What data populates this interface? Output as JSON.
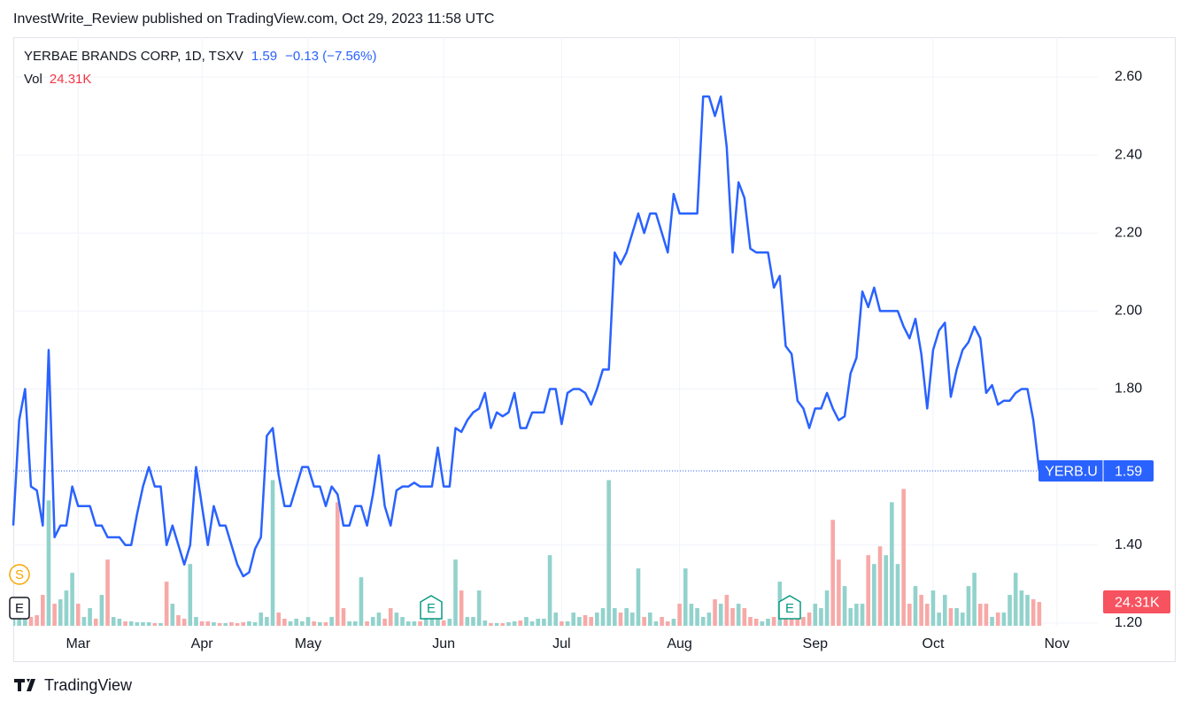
{
  "header": "InvestWrite_Review published on TradingView.com, Oct 29, 2023 11:58 UTC",
  "footer": "TradingView",
  "chart_data": {
    "type": "line",
    "title": "YERBAE BRANDS CORP, 1D, TSXV",
    "change": "−0.13 (−7.56%)",
    "ticker": "YERB.U",
    "categories": [
      null,
      null,
      null,
      null,
      null,
      null,
      null,
      null,
      null,
      null,
      null,
      "Mar",
      null,
      null,
      null,
      null,
      null,
      null,
      null,
      null,
      null,
      null,
      null,
      null,
      null,
      null,
      null,
      null,
      null,
      null,
      null,
      null,
      "Apr",
      null,
      null,
      null,
      null,
      null,
      null,
      null,
      null,
      null,
      null,
      null,
      null,
      null,
      null,
      null,
      null,
      null,
      "May",
      null,
      null,
      null,
      null,
      null,
      null,
      null,
      null,
      null,
      null,
      null,
      null,
      null,
      null,
      null,
      null,
      null,
      null,
      null,
      null,
      null,
      null,
      "Jun",
      null,
      null,
      null,
      null,
      null,
      null,
      null,
      null,
      null,
      null,
      null,
      null,
      null,
      null,
      null,
      null,
      null,
      null,
      null,
      "Jul",
      null,
      null,
      null,
      null,
      null,
      null,
      null,
      null,
      null,
      null,
      null,
      null,
      null,
      null,
      null,
      null,
      null,
      null,
      null,
      "Aug",
      null,
      null,
      null,
      null,
      null,
      null,
      null,
      null,
      null,
      null,
      null,
      null,
      null,
      null,
      null,
      null,
      null,
      null,
      null,
      null,
      null,
      null,
      "Sep",
      null,
      null,
      null,
      null,
      null,
      null,
      null,
      null,
      null,
      null,
      null,
      null,
      null,
      null,
      null,
      null,
      null,
      null,
      null,
      "Oct",
      null,
      null,
      null,
      null,
      null,
      null,
      null,
      null,
      null,
      null,
      null,
      null,
      null,
      null,
      null,
      null,
      null,
      null,
      null,
      null,
      "Nov"
    ],
    "series": [
      {
        "color": "#2962ff",
        "values": [
          1.45,
          1.72,
          1.8,
          1.55,
          1.54,
          1.45,
          1.9,
          1.42,
          1.45,
          1.45,
          1.55,
          1.5,
          1.5,
          1.5,
          1.45,
          1.45,
          1.42,
          1.42,
          1.42,
          1.4,
          1.4,
          1.48,
          1.55,
          1.6,
          1.55,
          1.55,
          1.4,
          1.45,
          1.4,
          1.35,
          1.4,
          1.6,
          1.5,
          1.4,
          1.5,
          1.45,
          1.45,
          1.4,
          1.35,
          1.32,
          1.33,
          1.39,
          1.42,
          1.68,
          1.7,
          1.58,
          1.5,
          1.5,
          1.55,
          1.6,
          1.6,
          1.55,
          1.55,
          1.5,
          1.55,
          1.53,
          1.45,
          1.45,
          1.5,
          1.5,
          1.45,
          1.53,
          1.63,
          1.5,
          1.45,
          1.54,
          1.55,
          1.55,
          1.56,
          1.55,
          1.55,
          1.55,
          1.65,
          1.55,
          1.55,
          1.7,
          1.69,
          1.72,
          1.74,
          1.75,
          1.79,
          1.7,
          1.74,
          1.73,
          1.74,
          1.79,
          1.7,
          1.7,
          1.74,
          1.74,
          1.74,
          1.8,
          1.8,
          1.71,
          1.79,
          1.8,
          1.8,
          1.79,
          1.76,
          1.8,
          1.85,
          1.85,
          2.15,
          2.12,
          2.15,
          2.2,
          2.25,
          2.2,
          2.25,
          2.25,
          2.2,
          2.15,
          2.3,
          2.25,
          2.25,
          2.25,
          2.25,
          2.55,
          2.55,
          2.5,
          2.55,
          2.42,
          2.15,
          2.33,
          2.29,
          2.16,
          2.15,
          2.15,
          2.15,
          2.06,
          2.09,
          1.91,
          1.89,
          1.77,
          1.75,
          1.7,
          1.75,
          1.75,
          1.79,
          1.75,
          1.72,
          1.73,
          1.84,
          1.88,
          2.05,
          2.01,
          2.06,
          2.0,
          2.0,
          2.0,
          2.0,
          1.96,
          1.93,
          1.98,
          1.89,
          1.75,
          1.9,
          1.95,
          1.97,
          1.78,
          1.85,
          1.9,
          1.92,
          1.96,
          1.93,
          1.79,
          1.81,
          1.76,
          1.77,
          1.77,
          1.79,
          1.8,
          1.8,
          1.72,
          1.59,
          null,
          null,
          null
        ]
      }
    ],
    "volume": {
      "name": "Vol",
      "up_color": "#92d2cc",
      "down_color": "#f7a9a7",
      "label_color": "#f7525f",
      "last_label": "24.31K",
      "ylim": [
        0,
        600000
      ],
      "values": [
        7200,
        9000,
        13500,
        9000,
        10800,
        31500,
        127800,
        22500,
        27000,
        36000,
        54000,
        22500,
        9000,
        18000,
        7200,
        31500,
        67500,
        9000,
        7200,
        4500,
        4500,
        3600,
        3600,
        3600,
        2700,
        2700,
        45000,
        22500,
        10800,
        7200,
        63000,
        9000,
        4500,
        4500,
        3600,
        2700,
        2700,
        3600,
        2700,
        3600,
        4500,
        3600,
        13500,
        9000,
        148500,
        13500,
        7200,
        4500,
        7200,
        4500,
        9000,
        4500,
        3600,
        3600,
        9000,
        126000,
        18000,
        4500,
        4500,
        49500,
        4500,
        9000,
        13500,
        7200,
        18000,
        13500,
        9000,
        4500,
        4500,
        4500,
        9000,
        13500,
        9000,
        5400,
        7200,
        67500,
        36000,
        9000,
        9000,
        36000,
        5400,
        2700,
        2700,
        2700,
        3600,
        4500,
        5400,
        9000,
        4500,
        7200,
        7200,
        72000,
        13500,
        4500,
        4500,
        13500,
        9000,
        10800,
        9000,
        13500,
        18000,
        148500,
        18000,
        13500,
        18000,
        13500,
        58500,
        9000,
        13500,
        4500,
        9000,
        4500,
        7200,
        22500,
        58500,
        22500,
        18000,
        9000,
        13500,
        27000,
        22500,
        31500,
        18000,
        22500,
        18000,
        9000,
        7200,
        4500,
        7200,
        9000,
        45000,
        18000,
        22500,
        18000,
        9000,
        13500,
        22500,
        18000,
        36000,
        108000,
        67500,
        40500,
        18000,
        22500,
        22500,
        72000,
        63000,
        81000,
        72000,
        126000,
        63000,
        139500,
        22500,
        40500,
        31500,
        22500,
        36000,
        13500,
        31500,
        18000,
        18000,
        13500,
        40500,
        54000,
        22500,
        22500,
        9000,
        13500,
        13500,
        31500,
        54000,
        36000,
        31500,
        27000,
        24310,
        null,
        null,
        null
      ]
    },
    "events": [
      "S",
      "E",
      "E",
      "E"
    ],
    "ylim": [
      1.193,
      2.702
    ],
    "yticks": [
      {
        "value": 1.2,
        "label": "1.20"
      },
      {
        "value": 1.4,
        "label": "1.40"
      },
      {
        "value": 1.8,
        "label": "1.80"
      },
      {
        "value": 2.0,
        "label": "2.00"
      },
      {
        "value": 2.2,
        "label": "2.20"
      },
      {
        "value": 2.4,
        "label": "2.40"
      },
      {
        "value": 2.6,
        "label": "2.60"
      }
    ],
    "grid": true
  }
}
